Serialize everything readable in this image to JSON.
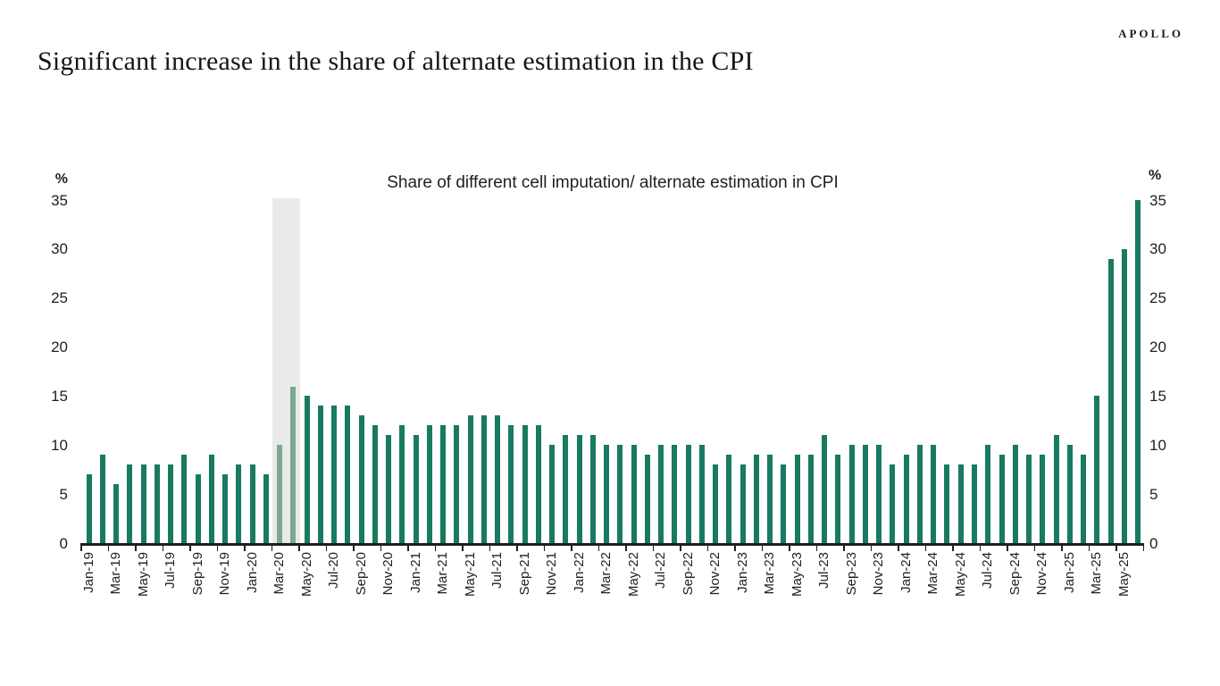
{
  "page": {
    "title": "Significant increase in the share of alternate estimation in the CPI",
    "logo": "APOLLO"
  },
  "chart_data": {
    "type": "bar",
    "title": "Share of different cell imputation/ alternate estimation in CPI",
    "unit_label": "%",
    "ylim": [
      0,
      35
    ],
    "yticks": [
      0,
      5,
      10,
      15,
      20,
      25,
      30,
      35
    ],
    "y_axis_sides": [
      "left",
      "right"
    ],
    "grid": "off",
    "legend": "none",
    "x_label_every": 2,
    "categories": [
      "Jan-19",
      "Feb-19",
      "Mar-19",
      "Apr-19",
      "May-19",
      "Jun-19",
      "Jul-19",
      "Aug-19",
      "Sep-19",
      "Oct-19",
      "Nov-19",
      "Dec-19",
      "Jan-20",
      "Feb-20",
      "Mar-20",
      "Apr-20",
      "May-20",
      "Jun-20",
      "Jul-20",
      "Aug-20",
      "Sep-20",
      "Oct-20",
      "Nov-20",
      "Dec-20",
      "Jan-21",
      "Feb-21",
      "Mar-21",
      "Apr-21",
      "May-21",
      "Jun-21",
      "Jul-21",
      "Aug-21",
      "Sep-21",
      "Oct-21",
      "Nov-21",
      "Dec-21",
      "Jan-22",
      "Feb-22",
      "Mar-22",
      "Apr-22",
      "May-22",
      "Jun-22",
      "Jul-22",
      "Aug-22",
      "Sep-22",
      "Oct-22",
      "Nov-22",
      "Dec-22",
      "Jan-23",
      "Feb-23",
      "Mar-23",
      "Apr-23",
      "May-23",
      "Jun-23",
      "Jul-23",
      "Aug-23",
      "Sep-23",
      "Oct-23",
      "Nov-23",
      "Dec-23",
      "Jan-24",
      "Feb-24",
      "Mar-24",
      "Apr-24",
      "May-24",
      "Jun-24",
      "Jul-24",
      "Aug-24",
      "Sep-24",
      "Oct-24",
      "Nov-24",
      "Dec-24",
      "Jan-25",
      "Feb-25",
      "Mar-25",
      "Apr-25",
      "May-25",
      "Jun-25"
    ],
    "values": [
      7,
      9,
      6,
      8,
      8,
      8,
      8,
      9,
      7,
      9,
      7,
      8,
      8,
      7,
      10,
      16,
      15,
      14,
      14,
      14,
      13,
      12,
      11,
      12,
      11,
      12,
      12,
      12,
      13,
      13,
      13,
      12,
      12,
      12,
      10,
      11,
      11,
      11,
      10,
      10,
      10,
      9,
      10,
      10,
      10,
      10,
      8,
      9,
      8,
      9,
      9,
      8,
      9,
      9,
      11,
      9,
      10,
      10,
      10,
      8,
      9,
      10,
      10,
      8,
      8,
      8,
      10,
      9,
      10,
      9,
      9,
      11,
      10,
      9,
      15,
      29,
      30,
      35
    ],
    "shaded_band": {
      "start_index": 14,
      "end_index": 15
    },
    "highlight_indices": [
      14,
      15
    ],
    "colors": {
      "bar": "#187a60",
      "bar_highlight": "#7aa893",
      "band": "#eaeae8",
      "axis": "#1f1f1f",
      "text": "#1f1f1f"
    }
  }
}
